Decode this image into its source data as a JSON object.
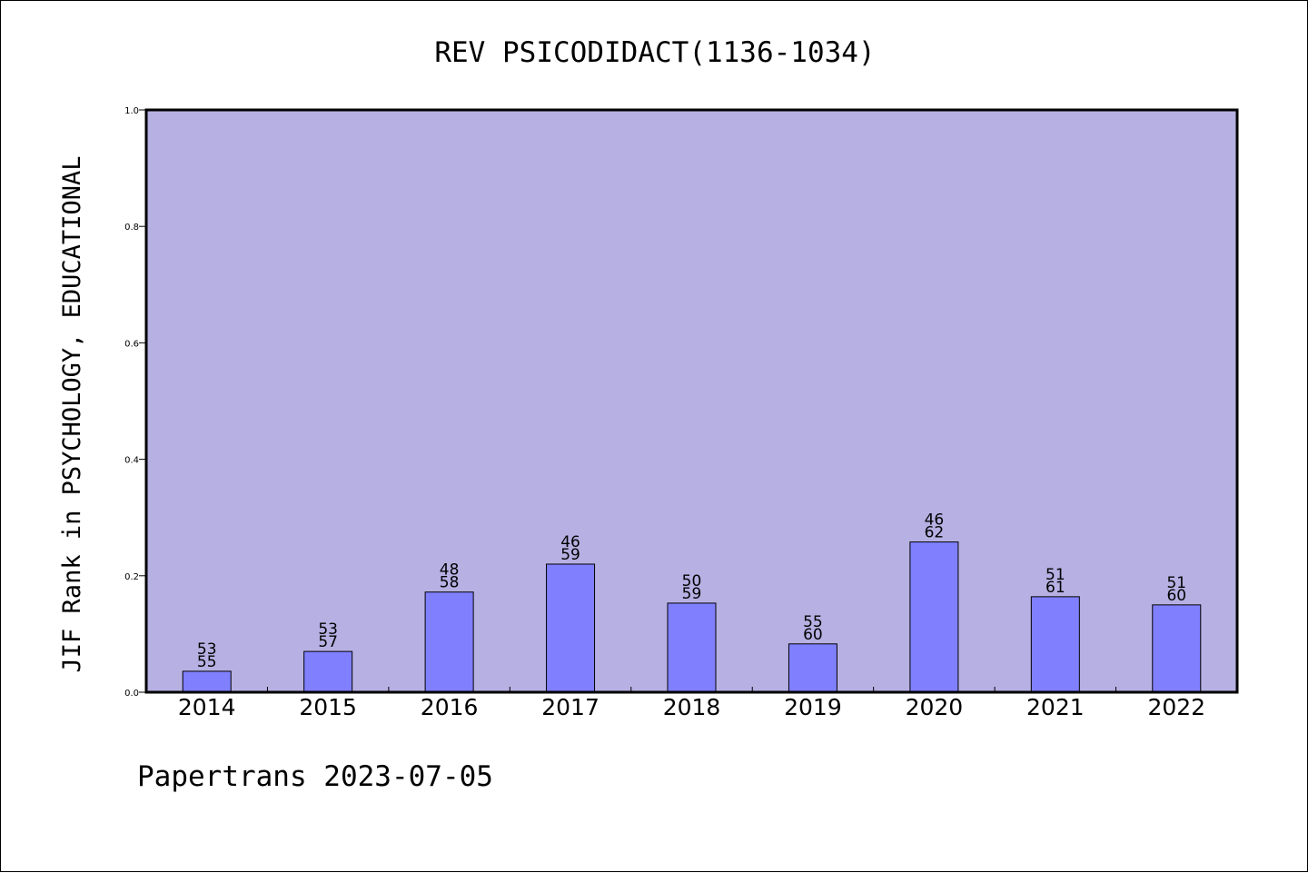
{
  "chart_data": {
    "type": "bar",
    "title": "REV PSICODIDACT(1136-1034)",
    "xlabel": "",
    "ylabel": "JIF Rank in PSYCHOLOGY, EDUCATIONAL",
    "ylim": [
      0,
      1.0
    ],
    "yticks": [
      "0.0",
      "0.2",
      "0.4",
      "0.6",
      "0.8",
      "1.0"
    ],
    "grid": false,
    "categories": [
      "2014",
      "2015",
      "2016",
      "2017",
      "2018",
      "2019",
      "2020",
      "2021",
      "2022"
    ],
    "values": [
      0.036,
      0.07,
      0.172,
      0.22,
      0.153,
      0.083,
      0.258,
      0.164,
      0.15
    ],
    "labels": [
      [
        "53",
        "55"
      ],
      [
        "53",
        "57"
      ],
      [
        "48",
        "58"
      ],
      [
        "46",
        "59"
      ],
      [
        "50",
        "59"
      ],
      [
        "55",
        "60"
      ],
      [
        "46",
        "62"
      ],
      [
        "51",
        "61"
      ],
      [
        "51",
        "60"
      ]
    ],
    "colors": {
      "plot_background": "#b6b0e3",
      "bar_fill": "#8080ff",
      "bar_stroke": "#000000"
    }
  },
  "footer": "Papertrans 2023-07-05"
}
